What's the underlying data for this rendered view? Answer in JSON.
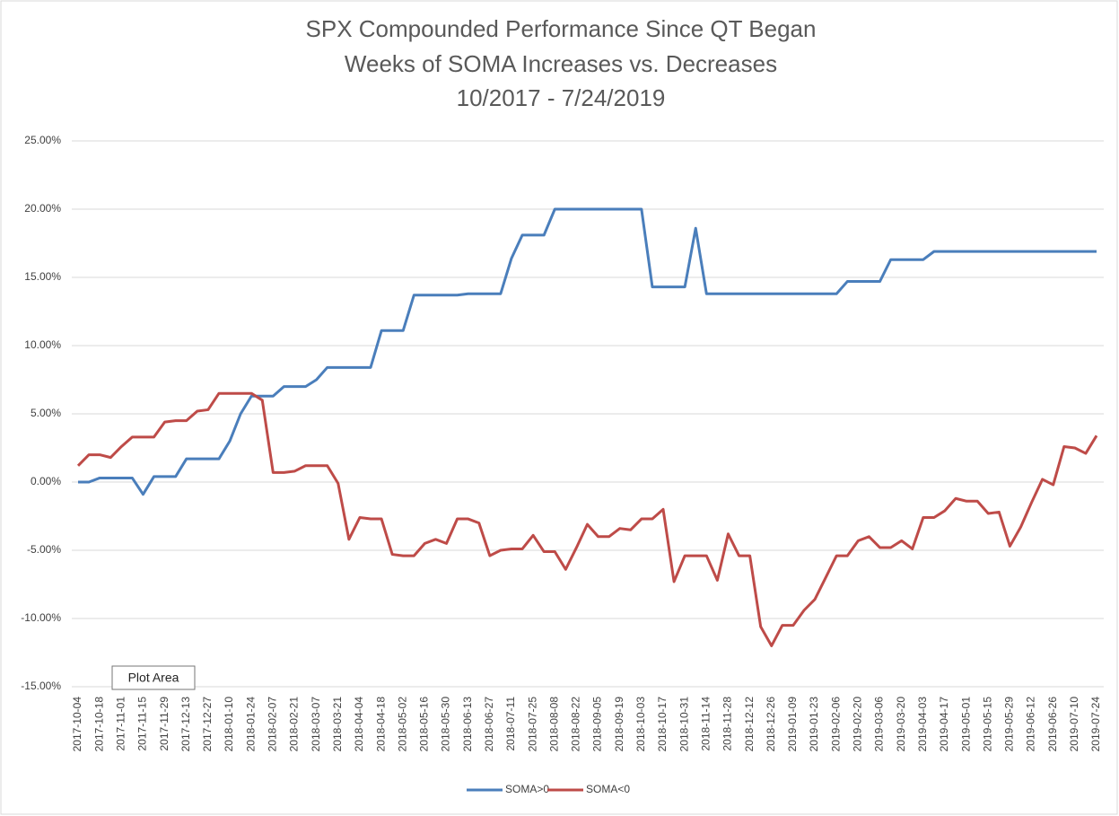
{
  "chart_data": {
    "type": "line",
    "title": [
      "SPX Compounded Performance Since QT Began",
      "Weeks of SOMA Increases vs. Decreases",
      "10/2017 - 7/24/2019"
    ],
    "tooltip": "Plot Area",
    "categories": [
      "2017-10-04",
      null,
      "2017-10-18",
      null,
      "2017-11-01",
      null,
      "2017-11-15",
      null,
      "2017-11-29",
      null,
      "2017-12-13",
      null,
      "2017-12-27",
      null,
      "2018-01-10",
      null,
      "2018-01-24",
      null,
      "2018-02-07",
      null,
      "2018-02-21",
      null,
      "2018-03-07",
      null,
      "2018-03-21",
      null,
      "2018-04-04",
      null,
      "2018-04-18",
      null,
      "2018-05-02",
      null,
      "2018-05-16",
      null,
      "2018-05-30",
      null,
      "2018-06-13",
      null,
      "2018-06-27",
      null,
      "2018-07-11",
      null,
      "2018-07-25",
      null,
      "2018-08-08",
      null,
      "2018-08-22",
      null,
      "2018-09-05",
      null,
      "2018-09-19",
      null,
      "2018-10-03",
      null,
      "2018-10-17",
      null,
      "2018-10-31",
      null,
      "2018-11-14",
      null,
      "2018-11-28",
      null,
      "2018-12-12",
      null,
      "2018-12-26",
      null,
      "2019-01-09",
      null,
      "2019-01-23",
      null,
      "2019-02-06",
      null,
      "2019-02-20",
      null,
      "2019-03-06",
      null,
      "2019-03-20",
      null,
      "2019-04-03",
      null,
      "2019-04-17",
      null,
      "2019-05-01",
      null,
      "2019-05-15",
      null,
      "2019-05-29",
      null,
      "2019-06-12",
      null,
      "2019-06-26",
      null,
      "2019-07-10",
      null,
      "2019-07-24"
    ],
    "series": [
      {
        "name": "SOMA>0",
        "color": "#4a7ebb",
        "values": [
          0.0,
          0.0,
          0.3,
          0.3,
          0.3,
          0.3,
          -0.9,
          0.4,
          0.4,
          0.4,
          1.7,
          1.7,
          1.7,
          1.7,
          3.0,
          5.0,
          6.3,
          6.3,
          6.3,
          7.0,
          7.0,
          7.0,
          7.5,
          8.4,
          8.4,
          8.4,
          8.4,
          8.4,
          11.1,
          11.1,
          11.1,
          13.7,
          13.7,
          13.7,
          13.7,
          13.7,
          13.8,
          13.8,
          13.8,
          13.8,
          16.4,
          18.1,
          18.1,
          18.1,
          20.0,
          20.0,
          20.0,
          20.0,
          20.0,
          20.0,
          20.0,
          20.0,
          20.0,
          14.3,
          14.3,
          14.3,
          14.3,
          18.6,
          13.8,
          13.8,
          13.8,
          13.8,
          13.8,
          13.8,
          13.8,
          13.8,
          13.8,
          13.8,
          13.8,
          13.8,
          13.8,
          14.7,
          14.7,
          14.7,
          14.7,
          16.3,
          16.3,
          16.3,
          16.3,
          16.9,
          16.9,
          16.9,
          16.9,
          16.9,
          16.9,
          16.9,
          16.9,
          16.9,
          16.9,
          16.9,
          16.9,
          16.9,
          16.9,
          16.9,
          16.9
        ]
      },
      {
        "name": "SOMA<0",
        "color": "#be4b48",
        "values": [
          1.2,
          2.0,
          2.0,
          1.8,
          2.6,
          3.3,
          3.3,
          3.3,
          4.4,
          4.5,
          4.5,
          5.2,
          5.3,
          6.5,
          6.5,
          6.5,
          6.5,
          6.0,
          0.7,
          0.7,
          0.8,
          1.2,
          1.2,
          1.2,
          -0.1,
          -4.2,
          -2.6,
          -2.7,
          -2.7,
          -5.3,
          -5.4,
          -5.4,
          -4.5,
          -4.2,
          -4.5,
          -2.7,
          -2.7,
          -3.0,
          -5.4,
          -5.0,
          -4.9,
          -4.9,
          -3.9,
          -5.1,
          -5.1,
          -6.4,
          -4.8,
          -3.1,
          -4.0,
          -4.0,
          -3.4,
          -3.5,
          -2.7,
          -2.7,
          -2.0,
          -7.3,
          -5.4,
          -5.4,
          -5.4,
          -7.2,
          -3.8,
          -5.4,
          -5.4,
          -10.6,
          -12.0,
          -10.5,
          -10.5,
          -9.4,
          -8.6,
          -7.0,
          -5.4,
          -5.4,
          -4.3,
          -4.0,
          -4.8,
          -4.8,
          -4.3,
          -4.9,
          -2.6,
          -2.6,
          -2.1,
          -1.2,
          -1.4,
          -1.4,
          -2.3,
          -2.2,
          -4.7,
          -3.3,
          -1.5,
          0.2,
          -0.2,
          2.6,
          2.5,
          2.1,
          3.4
        ]
      }
    ],
    "ylim": [
      -15,
      25
    ],
    "yticks": [
      {
        "value": -15,
        "label": "-15.00%"
      },
      {
        "value": -10,
        "label": "-10.00%"
      },
      {
        "value": -5,
        "label": "-5.00%"
      },
      {
        "value": 0,
        "label": "0.00%"
      },
      {
        "value": 5,
        "label": "5.00%"
      },
      {
        "value": 10,
        "label": "10.00%"
      },
      {
        "value": 15,
        "label": "15.00%"
      },
      {
        "value": 20,
        "label": "20.00%"
      },
      {
        "value": 25,
        "label": "25.00%"
      }
    ],
    "grid": true,
    "legend": "bottom"
  }
}
